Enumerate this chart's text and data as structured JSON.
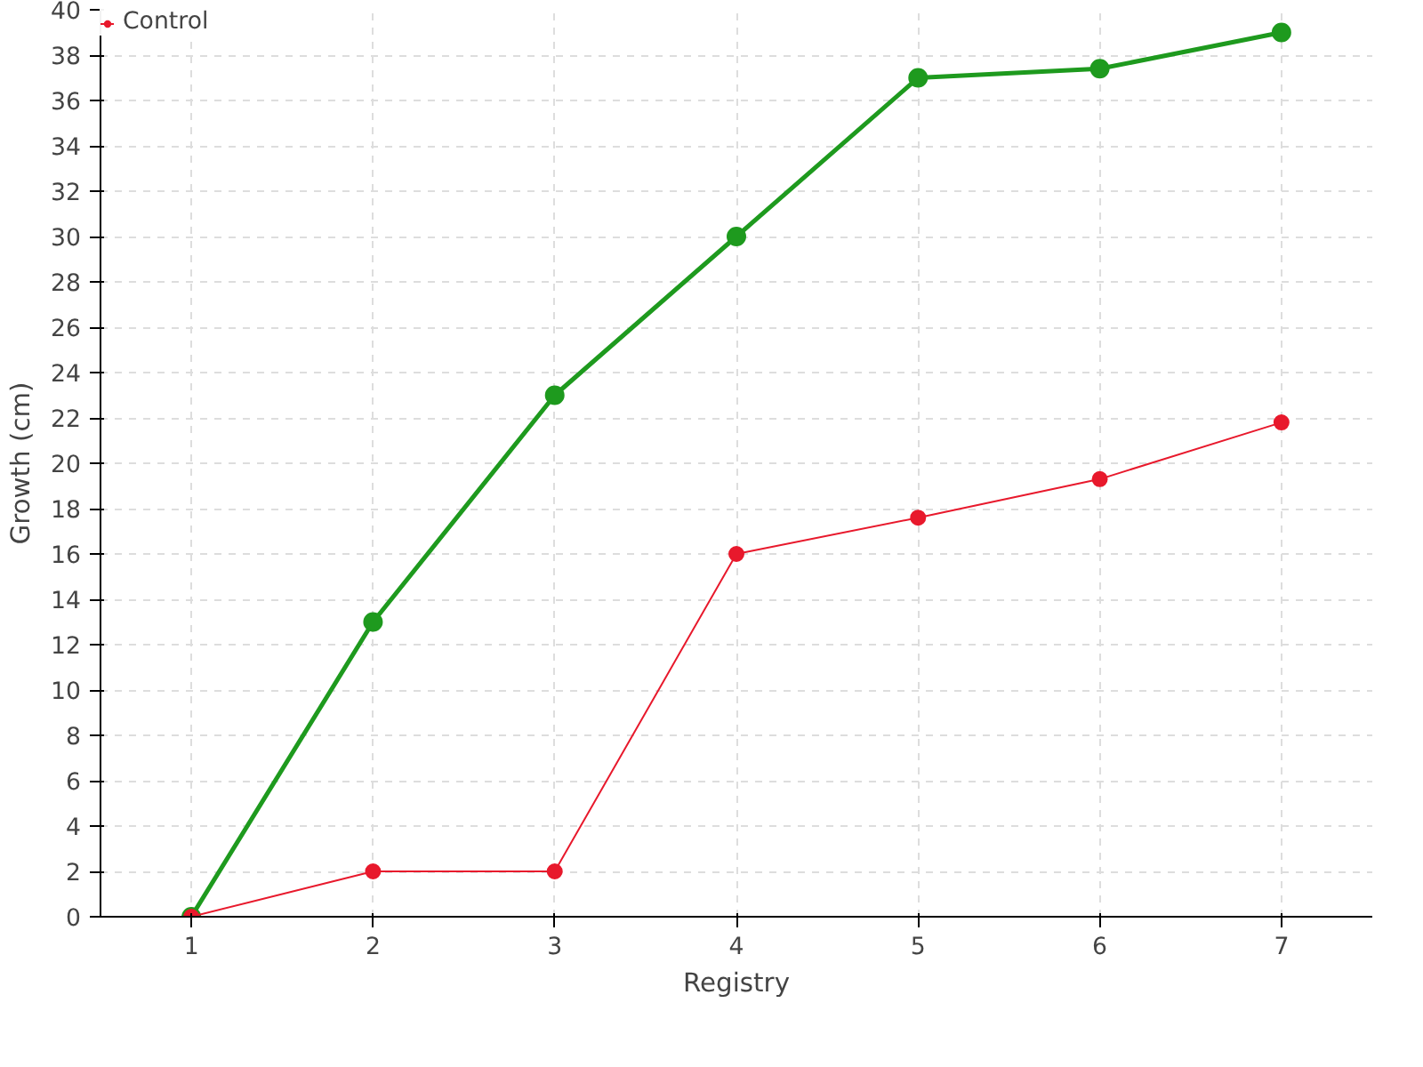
{
  "chart_data": {
    "type": "line",
    "xlabel": "Registry",
    "ylabel": "Growth (cm)",
    "x": [
      1,
      2,
      3,
      4,
      5,
      6,
      7
    ],
    "xlim": [
      0.5,
      7.5
    ],
    "xticks": [
      1,
      2,
      3,
      4,
      5,
      6,
      7
    ],
    "ylim": [
      0,
      40
    ],
    "yticks": [
      0,
      2,
      4,
      6,
      8,
      10,
      12,
      14,
      16,
      18,
      20,
      22,
      24,
      26,
      28,
      30,
      32,
      34,
      36,
      38,
      40
    ],
    "grid": true,
    "legend": "top left",
    "marker": "circle",
    "line_style": "solid",
    "series": [
      {
        "color": "#1e9a1e",
        "values": [
          0,
          13,
          23,
          30,
          37,
          37.4,
          39
        ]
      },
      {
        "name": "Control",
        "color": "#e8192c",
        "values": [
          0,
          2,
          2,
          16,
          17.6,
          19.3,
          21.8
        ]
      }
    ]
  }
}
